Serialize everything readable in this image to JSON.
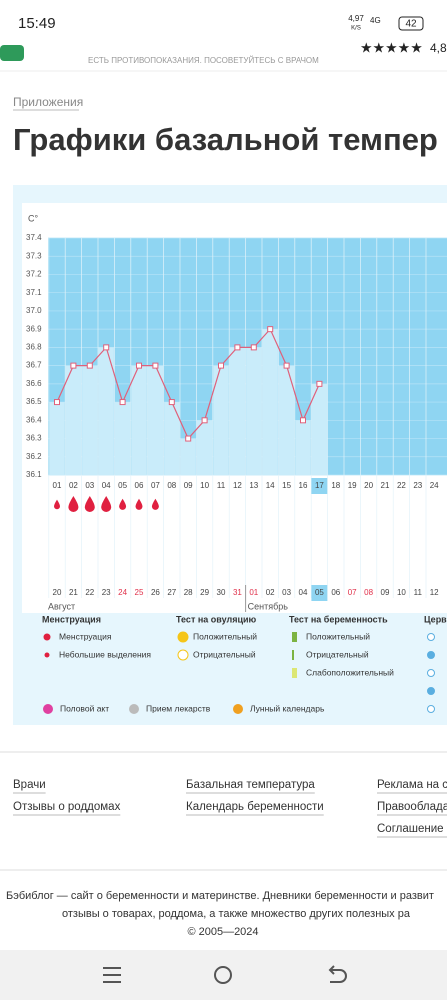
{
  "status": {
    "time": "15:49",
    "speed": "4,97",
    "speed_unit": "K/S",
    "network": "4G",
    "battery": "42"
  },
  "banner": {
    "warning": "ЕСТЬ ПРОТИВОПОКАЗАНИЯ. ПОСОВЕТУЙТЕСЬ С ВРАЧОМ",
    "rating": "4,8"
  },
  "breadcrumb": "Приложения",
  "title": "Графики базальной темпер",
  "chart_data": {
    "type": "line",
    "y_unit": "C°",
    "categories": [
      "01",
      "02",
      "03",
      "04",
      "05",
      "06",
      "07",
      "08",
      "09",
      "10",
      "11",
      "12",
      "13",
      "14",
      "15",
      "16",
      "17",
      "18",
      "19",
      "20",
      "21",
      "22",
      "23",
      "24"
    ],
    "values": [
      36.5,
      36.7,
      36.7,
      36.8,
      36.5,
      36.7,
      36.7,
      36.5,
      36.3,
      36.4,
      36.7,
      36.8,
      36.8,
      36.9,
      36.7,
      36.4,
      36.6,
      null,
      null,
      null,
      null,
      null,
      null,
      null
    ],
    "current_day": "17",
    "dates": [
      "20",
      "21",
      "22",
      "23",
      "24",
      "25",
      "26",
      "27",
      "28",
      "29",
      "30",
      "31",
      "01",
      "02",
      "03",
      "04",
      "05",
      "06",
      "07",
      "08",
      "09",
      "10",
      "11",
      "12"
    ],
    "weekend_dates": [
      "24",
      "25",
      "31",
      "01",
      "07",
      "08"
    ],
    "today_date": "05",
    "months": [
      "Август",
      "Сентябрь"
    ],
    "ylim": [
      36.1,
      37.4
    ],
    "yticks": [
      36.1,
      36.2,
      36.3,
      36.4,
      36.5,
      36.6,
      36.7,
      36.8,
      36.9,
      {
        "value": 37,
        "label": "37.0"
      },
      37.1,
      37.2,
      37.3,
      37.4
    ],
    "color": "#e0607a",
    "bar_color": "#c9ecfa",
    "plot_color": "#8fd5f2",
    "grid": true
  },
  "legend": {
    "groups": [
      {
        "title": "Менструация",
        "items": [
          "Менструация",
          "Небольшие выделения"
        ]
      },
      {
        "title": "Тест на овуляцию",
        "items": [
          "Положительный",
          "Отрицательный"
        ]
      },
      {
        "title": "Тест на беременность",
        "items": [
          "Положительный",
          "Отрицательный",
          "Слабоположительный"
        ]
      },
      {
        "title": "Церв",
        "items": []
      }
    ],
    "extra": [
      "Половой акт",
      "Прием лекарств",
      "Лунный календарь"
    ]
  },
  "footer": {
    "links": [
      [
        "Врачи",
        "Отзывы о роддомах"
      ],
      [
        "Базальная температура",
        "Календарь беременности"
      ],
      [
        "Реклама на са",
        "Правообладат",
        "Соглашение о"
      ]
    ],
    "about": [
      "Бэбиблог — сайт о беременности и материнстве. Дневники беременности и развит",
      "отзывы о товарах, роддома, а также множество других полезных ра",
      "© 2005—2024"
    ]
  }
}
